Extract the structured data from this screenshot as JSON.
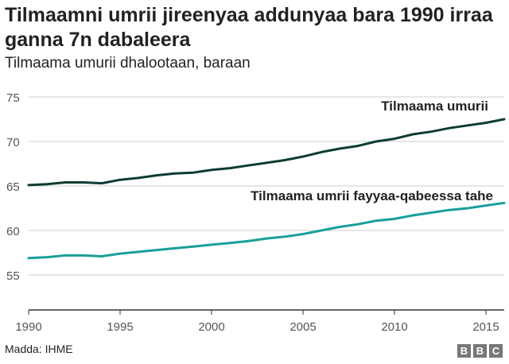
{
  "header": {
    "title": "Tilmaamni umrii jireenyaa addunyaa bara 1990 irraa ganna 7n dabaleera",
    "subtitle": "Tilmaama umurii dhalootaan, baraan"
  },
  "footer": {
    "source": "Madda: IHME",
    "logo_letters": [
      "B",
      "B",
      "C"
    ]
  },
  "colors": {
    "series_1": "#0c3c34",
    "series_2": "#18a09a",
    "grid": "#cccccc",
    "axis": "#333333"
  },
  "chart_data": {
    "type": "line",
    "xlim": [
      1990,
      2016
    ],
    "ylim": [
      50,
      75
    ],
    "x_ticks": [
      1990,
      1995,
      2000,
      2005,
      2010,
      2015
    ],
    "y_ticks": [
      55,
      60,
      65,
      70,
      75
    ],
    "grid": "horizontal",
    "x": [
      1990,
      1991,
      1992,
      1993,
      1994,
      1995,
      1996,
      1997,
      1998,
      1999,
      2000,
      2001,
      2002,
      2003,
      2004,
      2005,
      2006,
      2007,
      2008,
      2009,
      2010,
      2011,
      2012,
      2013,
      2014,
      2015,
      2016
    ],
    "series": [
      {
        "name": "Tilmaama umurii",
        "values": [
          65.1,
          65.2,
          65.4,
          65.4,
          65.3,
          65.7,
          65.9,
          66.2,
          66.4,
          66.5,
          66.8,
          67.0,
          67.3,
          67.6,
          67.9,
          68.3,
          68.8,
          69.2,
          69.5,
          70.0,
          70.3,
          70.8,
          71.1,
          71.5,
          71.8,
          72.1,
          72.5
        ]
      },
      {
        "name": "Tilmaama umrii fayyaa-qabeessa tahe",
        "values": [
          56.9,
          57.0,
          57.2,
          57.2,
          57.1,
          57.4,
          57.6,
          57.8,
          58.0,
          58.2,
          58.4,
          58.6,
          58.8,
          59.1,
          59.3,
          59.6,
          60.0,
          60.4,
          60.7,
          61.1,
          61.3,
          61.7,
          62.0,
          62.3,
          62.5,
          62.8,
          63.1
        ]
      }
    ]
  }
}
